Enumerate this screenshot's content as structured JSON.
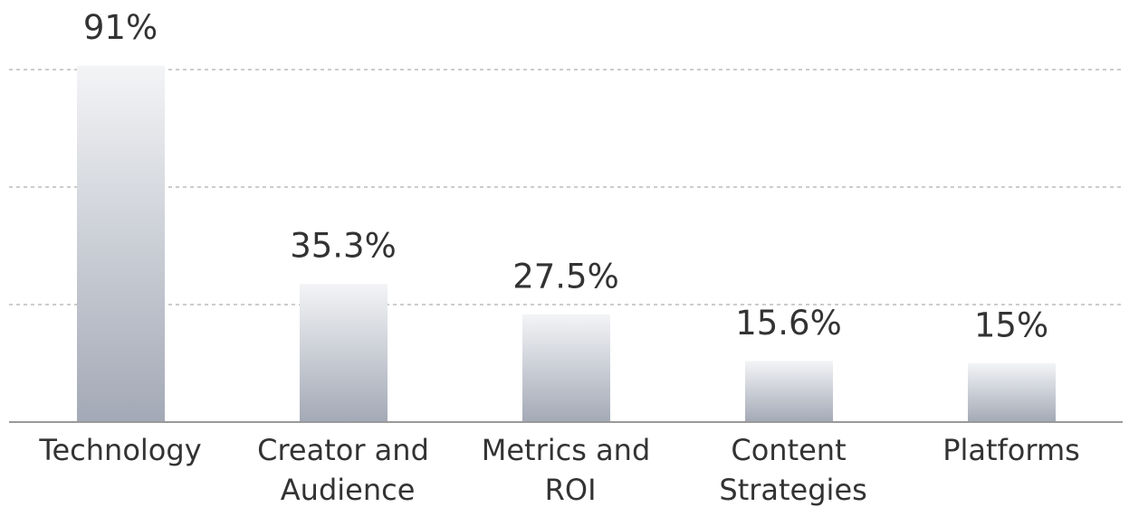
{
  "chart_data": {
    "type": "bar",
    "categories": [
      "Technology",
      "Creator and Audience",
      "Metrics and ROI",
      "Content Strategies",
      "Platforms"
    ],
    "values": [
      91,
      35.3,
      27.5,
      15.6,
      15
    ],
    "value_labels": [
      "91%",
      "35.3%",
      "27.5%",
      "15.6%",
      "15%"
    ],
    "ylim": [
      0,
      90
    ],
    "yticks": [
      0,
      30,
      60,
      90
    ],
    "grid": true
  }
}
